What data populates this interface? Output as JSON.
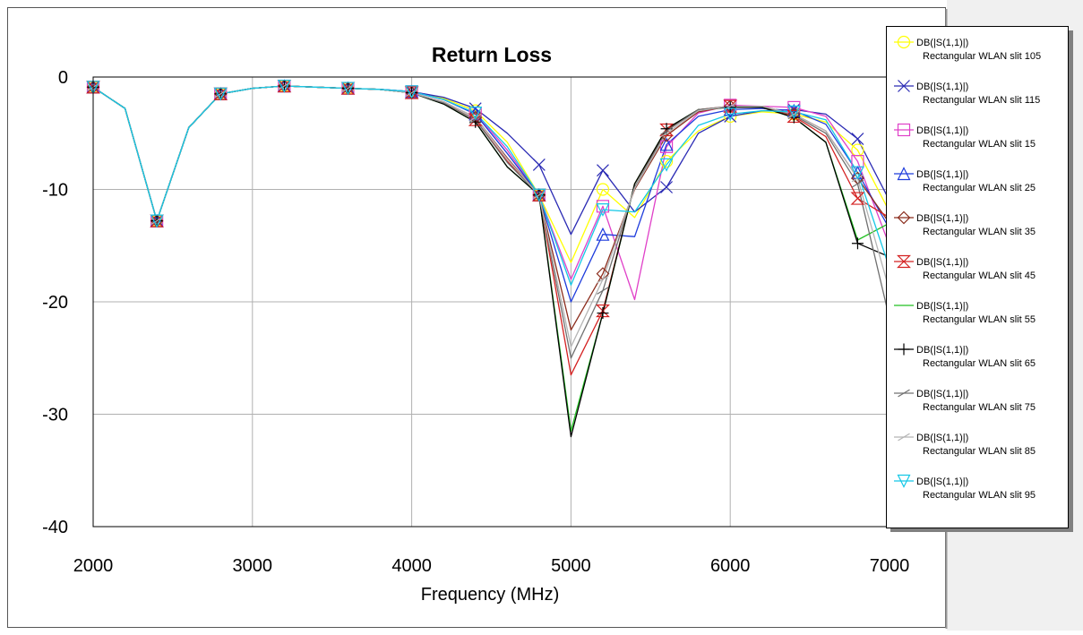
{
  "chart_data": {
    "type": "line",
    "title": "Return Loss",
    "xlabel": "Frequency (MHz)",
    "ylabel": "",
    "xlim": [
      2000,
      7000
    ],
    "ylim": [
      -40,
      0
    ],
    "xticks": [
      "2000",
      "3000",
      "4000",
      "5000",
      "6000",
      "7000"
    ],
    "yticks": [
      "0",
      "-10",
      "-20",
      "-30",
      "-40"
    ],
    "grid": true,
    "legend_position": "right",
    "x": [
      2000,
      2200,
      2400,
      2600,
      2800,
      3000,
      3200,
      3400,
      3600,
      3800,
      4000,
      4200,
      4400,
      4600,
      4800,
      5000,
      5200,
      5400,
      5600,
      5800,
      6000,
      6200,
      6400,
      6600,
      6800,
      7000
    ],
    "series": [
      {
        "name": "DB(|S(1,1)|)",
        "subname": "Rectangular WLAN slit 105",
        "color": "#ffff00",
        "marker": "circle",
        "values": [
          -0.9,
          -2.8,
          -12.8,
          -4.5,
          -1.5,
          -1.0,
          -0.8,
          -0.9,
          -1.0,
          -1.1,
          -1.3,
          -1.9,
          -3.0,
          -5.8,
          -10.5,
          -16.5,
          -10.0,
          -12.5,
          -7.5,
          -4.8,
          -3.5,
          -3.1,
          -3.3,
          -4.0,
          -6.5,
          -12.0
        ]
      },
      {
        "name": "DB(|S(1,1)|)",
        "subname": "Rectangular WLAN slit 115",
        "color": "#2a2ab4",
        "marker": "x",
        "values": [
          -0.9,
          -2.8,
          -12.8,
          -4.5,
          -1.5,
          -1.0,
          -0.8,
          -0.9,
          -1.0,
          -1.1,
          -1.3,
          -1.8,
          -2.8,
          -5.0,
          -7.8,
          -14.0,
          -8.3,
          -12.0,
          -9.8,
          -5.0,
          -3.5,
          -3.0,
          -2.9,
          -3.3,
          -5.5,
          -11.0
        ]
      },
      {
        "name": "DB(|S(1,1)|)",
        "subname": "Rectangular WLAN slit 15",
        "color": "#e040c8",
        "marker": "square",
        "values": [
          -0.9,
          -2.8,
          -12.8,
          -4.5,
          -1.5,
          -1.0,
          -0.8,
          -0.9,
          -1.0,
          -1.1,
          -1.3,
          -2.0,
          -3.2,
          -6.5,
          -10.5,
          -18.0,
          -11.5,
          -19.8,
          -6.2,
          -3.2,
          -2.5,
          -2.6,
          -2.7,
          -3.5,
          -7.5,
          -15.0
        ]
      },
      {
        "name": "DB(|S(1,1)|)",
        "subname": "Rectangular WLAN slit 25",
        "color": "#1e3cdc",
        "marker": "triangle",
        "values": [
          -0.9,
          -2.8,
          -12.8,
          -4.5,
          -1.5,
          -1.0,
          -0.8,
          -0.9,
          -1.0,
          -1.1,
          -1.3,
          -2.0,
          -3.3,
          -6.8,
          -10.5,
          -20.0,
          -14.0,
          -14.2,
          -6.0,
          -3.5,
          -2.9,
          -2.8,
          -3.0,
          -4.2,
          -8.5,
          -13.5
        ]
      },
      {
        "name": "DB(|S(1,1)|)",
        "subname": "Rectangular WLAN slit 35",
        "color": "#8b2c1c",
        "marker": "diamond",
        "values": [
          -0.9,
          -2.8,
          -12.8,
          -4.5,
          -1.5,
          -1.0,
          -0.8,
          -0.9,
          -1.0,
          -1.1,
          -1.4,
          -2.2,
          -3.6,
          -7.2,
          -10.5,
          -22.5,
          -17.5,
          -10.0,
          -5.2,
          -3.1,
          -2.6,
          -2.6,
          -3.3,
          -4.8,
          -9.0,
          -13.0
        ]
      },
      {
        "name": "DB(|S(1,1)|)",
        "subname": "Rectangular WLAN slit 45",
        "color": "#d42020",
        "marker": "hourglass",
        "values": [
          -0.9,
          -2.8,
          -12.8,
          -4.5,
          -1.5,
          -1.0,
          -0.8,
          -0.9,
          -1.0,
          -1.1,
          -1.4,
          -2.3,
          -3.8,
          -7.5,
          -10.5,
          -26.5,
          -20.8,
          -9.5,
          -4.7,
          -2.9,
          -2.6,
          -2.6,
          -3.5,
          -5.3,
          -10.8,
          -12.5
        ]
      },
      {
        "name": "DB(|S(1,1)|)",
        "subname": "Rectangular WLAN slit 55",
        "color": "#22c022",
        "marker": "none",
        "values": [
          -0.9,
          -2.8,
          -12.8,
          -4.5,
          -1.5,
          -1.0,
          -0.8,
          -0.9,
          -1.0,
          -1.1,
          -1.4,
          -2.4,
          -4.0,
          -8.0,
          -10.5,
          -31.5,
          -21.0,
          -9.5,
          -4.6,
          -2.9,
          -2.7,
          -2.7,
          -3.6,
          -5.8,
          -14.5,
          -13.0
        ]
      },
      {
        "name": "DB(|S(1,1)|)",
        "subname": "Rectangular WLAN slit 65",
        "color": "#000000",
        "marker": "plus",
        "values": [
          -0.9,
          -2.8,
          -12.8,
          -4.5,
          -1.5,
          -1.0,
          -0.8,
          -0.9,
          -1.0,
          -1.1,
          -1.4,
          -2.4,
          -4.0,
          -8.0,
          -10.5,
          -32.0,
          -21.0,
          -9.5,
          -4.6,
          -2.9,
          -2.7,
          -2.7,
          -3.6,
          -5.8,
          -14.8,
          -16.0
        ]
      },
      {
        "name": "DB(|S(1,1)|)",
        "subname": "Rectangular WLAN slit 75",
        "color": "#707070",
        "marker": "slash",
        "values": [
          -0.9,
          -2.8,
          -12.8,
          -4.5,
          -1.5,
          -1.0,
          -0.8,
          -0.9,
          -1.0,
          -1.1,
          -1.4,
          -2.3,
          -3.8,
          -7.6,
          -10.5,
          -25.0,
          -19.0,
          -9.8,
          -4.8,
          -2.9,
          -2.6,
          -2.6,
          -3.4,
          -5.0,
          -9.5,
          -21.5
        ]
      },
      {
        "name": "DB(|S(1,1)|)",
        "subname": "Rectangular WLAN slit 85",
        "color": "#b4b4b4",
        "marker": "slash",
        "values": [
          -0.9,
          -2.8,
          -12.8,
          -4.5,
          -1.5,
          -1.0,
          -0.8,
          -0.9,
          -1.0,
          -1.1,
          -1.4,
          -2.2,
          -3.6,
          -7.3,
          -10.5,
          -24.0,
          -18.0,
          -9.9,
          -5.0,
          -3.0,
          -2.6,
          -2.6,
          -3.3,
          -4.8,
          -9.0,
          -19.0
        ]
      },
      {
        "name": "DB(|S(1,1)|)",
        "subname": "Rectangular WLAN slit 95",
        "color": "#14c8e6",
        "marker": "triangle-down",
        "values": [
          -0.9,
          -2.8,
          -12.8,
          -4.5,
          -1.5,
          -1.0,
          -0.8,
          -0.9,
          -1.0,
          -1.1,
          -1.3,
          -2.0,
          -3.2,
          -6.2,
          -10.5,
          -18.5,
          -11.8,
          -12.0,
          -7.8,
          -4.3,
          -3.3,
          -3.0,
          -3.1,
          -3.8,
          -8.5,
          -17.0
        ]
      }
    ]
  }
}
